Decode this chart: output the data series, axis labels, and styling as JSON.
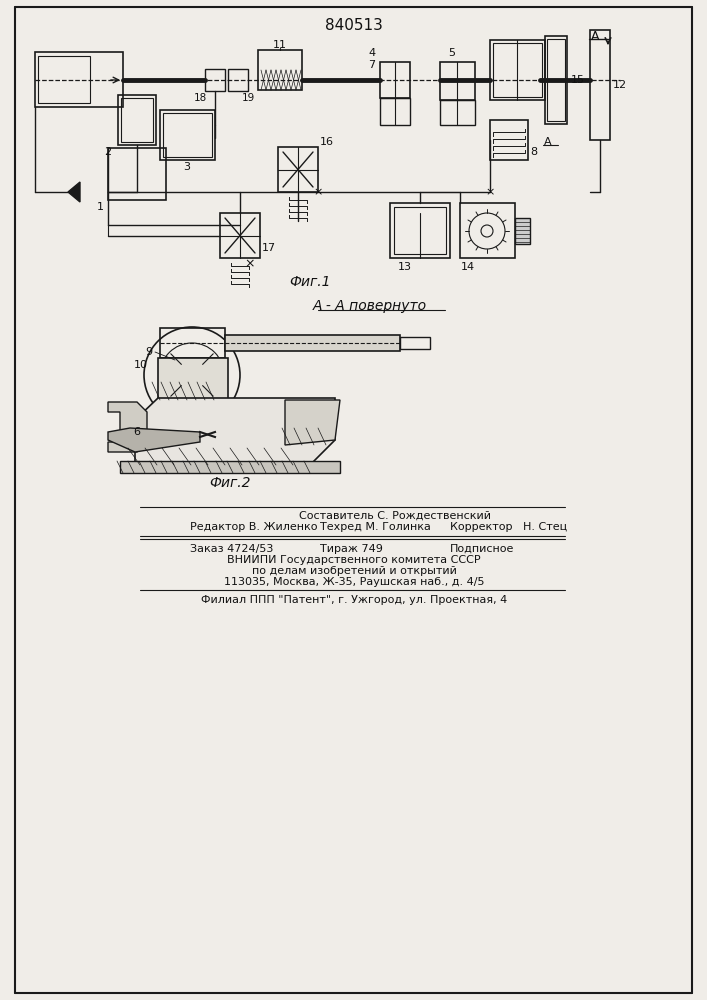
{
  "patent_number": "840513",
  "bg_color": "#f0ede8",
  "line_color": "#1a1a1a",
  "fig1_label": "Фиг.1",
  "fig2_label": "Фиг.2",
  "section_label": "А - А повернуто",
  "arrow_label": "А",
  "footer_line1": "Составитель С. Рождественский",
  "footer_line2_left": "Редактор В. Жиленко",
  "footer_line2_mid": "Техред М. Голинка",
  "footer_line2_right": "Корректор   Н. Стец",
  "footer_line3_left": "Заказ 4724/53",
  "footer_line3_mid": "Тираж 749",
  "footer_line3_right": "Подписное",
  "footer_line4": "ВНИИПИ Государственного комитета СССР",
  "footer_line5": "по делам изобретений и открытий",
  "footer_line6": "113035, Москва, Ж-35, Раушская наб., д. 4/5",
  "footer_line7": "Филиал ППП \"Патент\", г. Ужгород, ул. Проектная, 4",
  "text_color": "#111111"
}
